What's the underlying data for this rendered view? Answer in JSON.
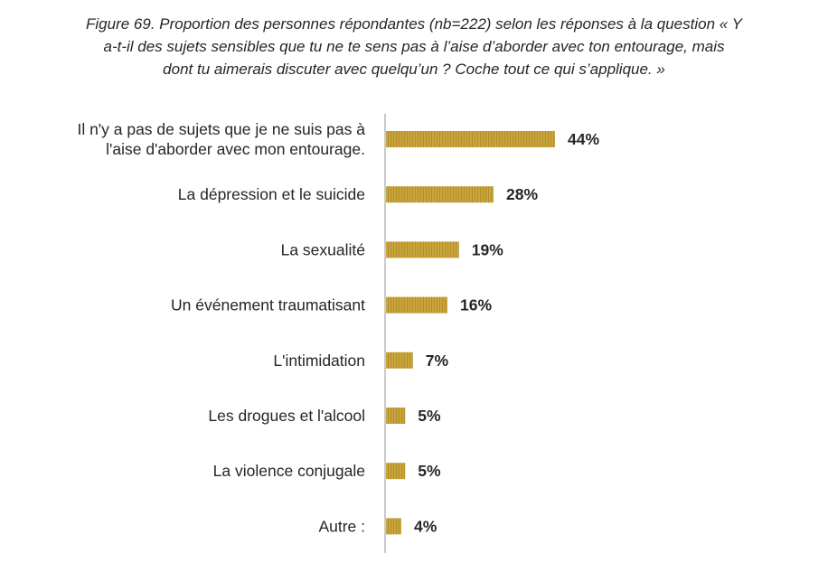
{
  "figure": {
    "title_lines": [
      "Figure 69. Proportion des personnes répondantes (nb=222) selon les réponses à la question « Y",
      "a-t-il des sujets sensibles que tu ne te sens pas à l’aise d’aborder avec ton entourage, mais",
      "dont tu aimerais discuter avec quelqu’un ? Coche tout ce qui s’applique. »"
    ]
  },
  "chart_data": {
    "type": "bar",
    "orientation": "horizontal",
    "categories": [
      "Il n'y a pas de sujets que je ne suis pas à l'aise d'aborder avec mon entourage.",
      "La dépression et le suicide",
      "La sexualité",
      "Un événement traumatisant",
      "L'intimidation",
      "Les drogues et l'alcool",
      "La violence conjugale",
      "Autre :"
    ],
    "category_label_lines": [
      [
        "Il n'y a pas de sujets que je ne suis pas à",
        "l'aise d'aborder avec mon entourage."
      ],
      [
        "La dépression et le suicide"
      ],
      [
        "La sexualité"
      ],
      [
        "Un événement traumatisant"
      ],
      [
        "L'intimidation"
      ],
      [
        "Les drogues et l'alcool"
      ],
      [
        "La violence conjugale"
      ],
      [
        "Autre :"
      ]
    ],
    "values": [
      44,
      28,
      19,
      16,
      7,
      5,
      5,
      4
    ],
    "data_labels": [
      "44%",
      "28%",
      "19%",
      "16%",
      "7%",
      "5%",
      "5%",
      "4%"
    ],
    "unit": "%",
    "xlim": [
      0,
      100
    ],
    "grid": false,
    "legend": "none",
    "bar_color": "#c9a53c",
    "bar_stripe_color": "#b28f2b",
    "axis_color": "#b8b8b8"
  }
}
